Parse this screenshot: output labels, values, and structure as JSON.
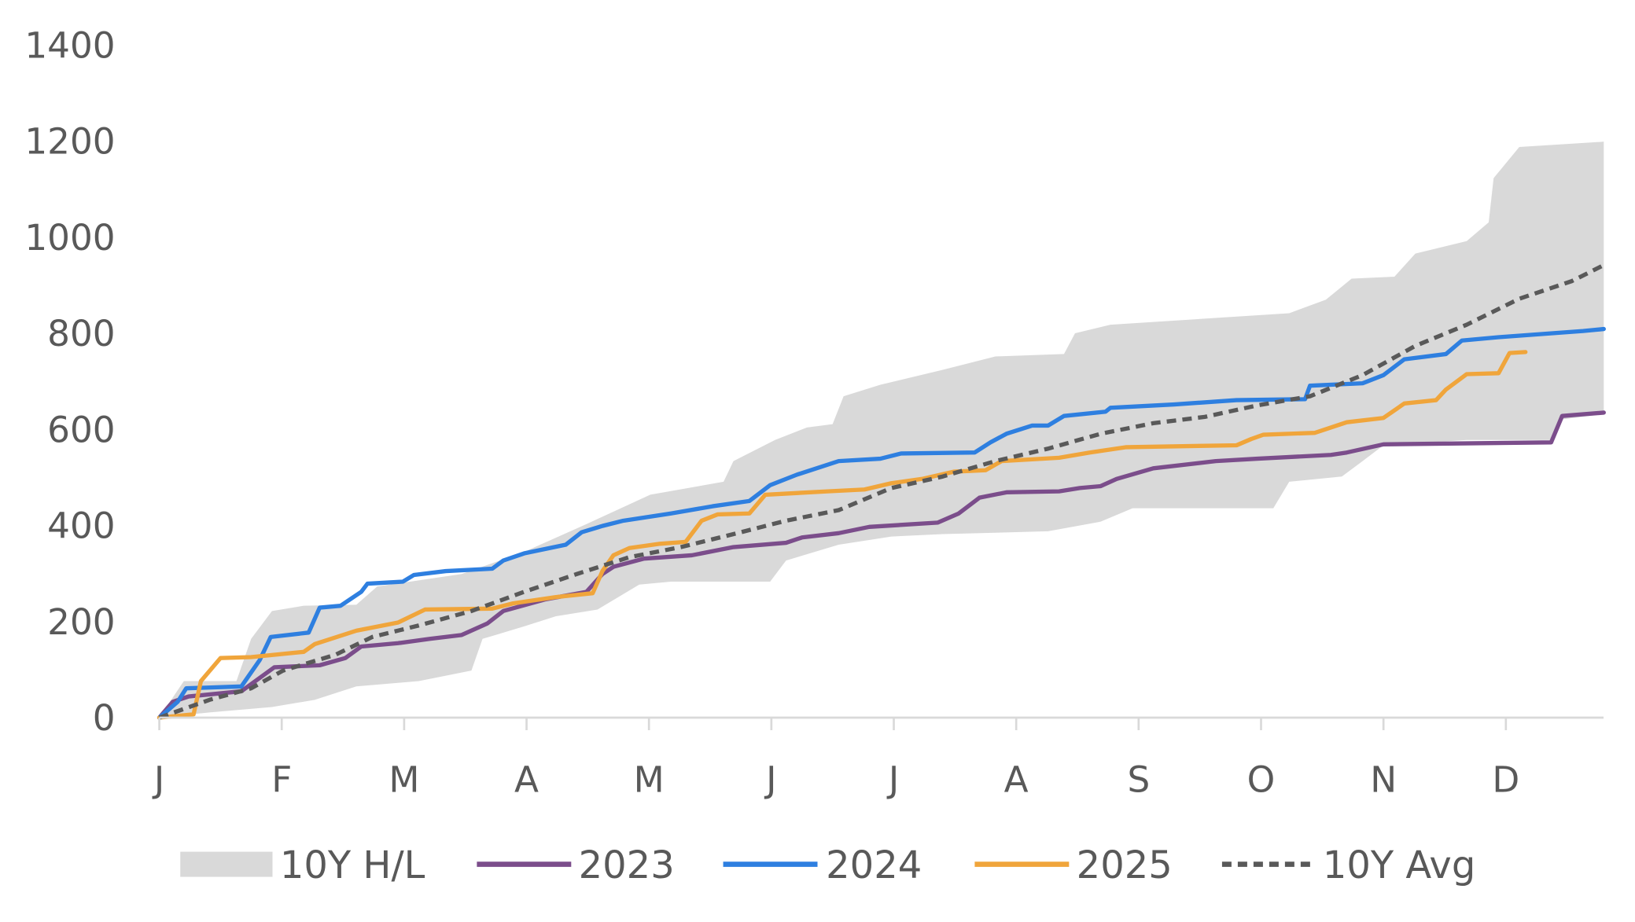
{
  "chart_data": {
    "type": "line",
    "title": "",
    "xlabel": "",
    "ylabel": "",
    "x_unit": "months since Jan 1",
    "xlim": [
      0,
      11.8
    ],
    "ylim": [
      0,
      1400
    ],
    "yticks": [
      0,
      200,
      400,
      600,
      800,
      1000,
      1200,
      1400
    ],
    "xtick_labels": [
      "J",
      "F",
      "M",
      "A",
      "M",
      "J",
      "J",
      "A",
      "S",
      "O",
      "N",
      "D"
    ],
    "grid": false,
    "legend_position": "bottom",
    "colors": {
      "band": "#d9d9d9",
      "2023": "#7b4d8b",
      "2024": "#2e7fe0",
      "2025": "#f0a53b",
      "avg": "#595959"
    },
    "band": {
      "name": "10Y H/L",
      "high": [
        [
          0,
          0
        ],
        [
          0.2,
          76
        ],
        [
          0.63,
          76
        ],
        [
          0.75,
          164
        ],
        [
          0.92,
          222
        ],
        [
          1.18,
          233
        ],
        [
          1.61,
          235
        ],
        [
          1.78,
          273
        ],
        [
          2.47,
          299
        ],
        [
          2.98,
          345
        ],
        [
          3.49,
          403
        ],
        [
          4.01,
          464
        ],
        [
          4.61,
          491
        ],
        [
          4.69,
          534
        ],
        [
          5.03,
          578
        ],
        [
          5.29,
          604
        ],
        [
          5.5,
          611
        ],
        [
          5.59,
          669
        ],
        [
          5.89,
          693
        ],
        [
          6.4,
          724
        ],
        [
          6.83,
          752
        ],
        [
          7.39,
          757
        ],
        [
          7.48,
          800
        ],
        [
          7.77,
          818
        ],
        [
          9.23,
          842
        ],
        [
          9.53,
          870
        ],
        [
          9.74,
          914
        ],
        [
          10.09,
          918
        ],
        [
          10.26,
          966
        ],
        [
          10.68,
          992
        ],
        [
          10.86,
          1031
        ],
        [
          10.9,
          1123
        ],
        [
          11.11,
          1188
        ],
        [
          11.8,
          1199
        ]
      ],
      "low": [
        [
          0,
          0
        ],
        [
          0.41,
          11
        ],
        [
          0.92,
          22
        ],
        [
          1.27,
          37
        ],
        [
          1.61,
          65
        ],
        [
          2.12,
          76
        ],
        [
          2.55,
          98
        ],
        [
          2.64,
          164
        ],
        [
          2.98,
          190
        ],
        [
          3.24,
          211
        ],
        [
          3.58,
          225
        ],
        [
          3.92,
          277
        ],
        [
          4.18,
          283
        ],
        [
          4.99,
          283
        ],
        [
          5.12,
          327
        ],
        [
          5.55,
          360
        ],
        [
          5.98,
          377
        ],
        [
          6.4,
          382
        ],
        [
          7.26,
          388
        ],
        [
          7.69,
          408
        ],
        [
          7.95,
          436
        ],
        [
          9.1,
          436
        ],
        [
          9.23,
          491
        ],
        [
          9.66,
          502
        ],
        [
          9.83,
          534
        ],
        [
          10.0,
          567
        ],
        [
          10.68,
          578
        ],
        [
          11.37,
          578
        ],
        [
          11.46,
          621
        ],
        [
          11.8,
          632
        ]
      ]
    },
    "series": [
      {
        "name": "2023",
        "key": "2023",
        "dashed": false,
        "points": [
          [
            0,
            0
          ],
          [
            0.11,
            33
          ],
          [
            0.24,
            44
          ],
          [
            0.67,
            55
          ],
          [
            0.94,
            105
          ],
          [
            1.31,
            109
          ],
          [
            1.52,
            124
          ],
          [
            1.65,
            148
          ],
          [
            1.95,
            155
          ],
          [
            2.21,
            164
          ],
          [
            2.47,
            172
          ],
          [
            2.68,
            196
          ],
          [
            2.81,
            222
          ],
          [
            3.15,
            246
          ],
          [
            3.49,
            262
          ],
          [
            3.62,
            299
          ],
          [
            3.71,
            314
          ],
          [
            3.96,
            331
          ],
          [
            4.35,
            338
          ],
          [
            4.69,
            355
          ],
          [
            5.12,
            364
          ],
          [
            5.25,
            375
          ],
          [
            5.55,
            384
          ],
          [
            5.8,
            397
          ],
          [
            6.36,
            406
          ],
          [
            6.53,
            425
          ],
          [
            6.7,
            458
          ],
          [
            6.92,
            469
          ],
          [
            7.35,
            471
          ],
          [
            7.52,
            478
          ],
          [
            7.69,
            482
          ],
          [
            7.82,
            497
          ],
          [
            8.12,
            519
          ],
          [
            8.63,
            534
          ],
          [
            8.97,
            539
          ],
          [
            9.57,
            547
          ],
          [
            9.7,
            552
          ],
          [
            10.0,
            569
          ],
          [
            11.37,
            573
          ],
          [
            11.46,
            628
          ],
          [
            11.8,
            635
          ]
        ]
      },
      {
        "name": "2024",
        "key": "2024",
        "dashed": false,
        "points": [
          [
            0,
            0
          ],
          [
            0.15,
            33
          ],
          [
            0.22,
            61
          ],
          [
            0.67,
            65
          ],
          [
            0.82,
            120
          ],
          [
            0.91,
            168
          ],
          [
            1.22,
            177
          ],
          [
            1.31,
            229
          ],
          [
            1.48,
            233
          ],
          [
            1.65,
            262
          ],
          [
            1.7,
            279
          ],
          [
            1.99,
            283
          ],
          [
            2.08,
            297
          ],
          [
            2.34,
            305
          ],
          [
            2.72,
            310
          ],
          [
            2.81,
            327
          ],
          [
            2.98,
            342
          ],
          [
            3.32,
            360
          ],
          [
            3.45,
            386
          ],
          [
            3.62,
            399
          ],
          [
            3.79,
            410
          ],
          [
            4.18,
            425
          ],
          [
            4.52,
            440
          ],
          [
            4.82,
            451
          ],
          [
            4.99,
            484
          ],
          [
            5.21,
            506
          ],
          [
            5.55,
            534
          ],
          [
            5.89,
            539
          ],
          [
            6.06,
            550
          ],
          [
            6.66,
            552
          ],
          [
            6.79,
            573
          ],
          [
            6.92,
            591
          ],
          [
            7.13,
            608
          ],
          [
            7.26,
            608
          ],
          [
            7.39,
            628
          ],
          [
            7.73,
            637
          ],
          [
            7.77,
            645
          ],
          [
            8.29,
            652
          ],
          [
            8.8,
            661
          ],
          [
            9.36,
            663
          ],
          [
            9.4,
            691
          ],
          [
            9.83,
            696
          ],
          [
            10.0,
            713
          ],
          [
            10.17,
            746
          ],
          [
            10.51,
            757
          ],
          [
            10.64,
            785
          ],
          [
            10.94,
            792
          ],
          [
            11.63,
            805
          ],
          [
            11.8,
            809
          ]
        ]
      },
      {
        "name": "2025",
        "key": "2025",
        "dashed": false,
        "points": [
          [
            0,
            0
          ],
          [
            0.28,
            7
          ],
          [
            0.34,
            76
          ],
          [
            0.5,
            124
          ],
          [
            0.75,
            126
          ],
          [
            1.18,
            137
          ],
          [
            1.27,
            153
          ],
          [
            1.61,
            181
          ],
          [
            1.95,
            198
          ],
          [
            2.17,
            225
          ],
          [
            2.72,
            227
          ],
          [
            2.89,
            238
          ],
          [
            3.24,
            251
          ],
          [
            3.54,
            259
          ],
          [
            3.62,
            305
          ],
          [
            3.71,
            338
          ],
          [
            3.84,
            353
          ],
          [
            4.09,
            362
          ],
          [
            4.3,
            366
          ],
          [
            4.43,
            410
          ],
          [
            4.56,
            423
          ],
          [
            4.82,
            425
          ],
          [
            4.95,
            464
          ],
          [
            5.46,
            471
          ],
          [
            5.76,
            475
          ],
          [
            5.98,
            488
          ],
          [
            6.23,
            497
          ],
          [
            6.49,
            512
          ],
          [
            6.75,
            515
          ],
          [
            6.88,
            534
          ],
          [
            7.35,
            541
          ],
          [
            7.6,
            552
          ],
          [
            7.9,
            563
          ],
          [
            8.8,
            567
          ],
          [
            8.92,
            580
          ],
          [
            9.02,
            589
          ],
          [
            9.44,
            593
          ],
          [
            9.7,
            615
          ],
          [
            10.0,
            624
          ],
          [
            10.17,
            654
          ],
          [
            10.43,
            661
          ],
          [
            10.51,
            683
          ],
          [
            10.68,
            715
          ],
          [
            10.94,
            717
          ],
          [
            11.03,
            759
          ],
          [
            11.16,
            761
          ]
        ]
      },
      {
        "name": "10Y Avg",
        "key": "avg",
        "dashed": true,
        "points": [
          [
            0,
            0
          ],
          [
            0.41,
            37
          ],
          [
            0.75,
            61
          ],
          [
            1.01,
            98
          ],
          [
            1.44,
            131
          ],
          [
            1.74,
            168
          ],
          [
            2.12,
            192
          ],
          [
            2.55,
            222
          ],
          [
            2.98,
            262
          ],
          [
            3.41,
            299
          ],
          [
            3.84,
            334
          ],
          [
            4.26,
            355
          ],
          [
            4.69,
            382
          ],
          [
            5.12,
            410
          ],
          [
            5.55,
            432
          ],
          [
            5.98,
            478
          ],
          [
            6.4,
            502
          ],
          [
            6.83,
            534
          ],
          [
            7.26,
            560
          ],
          [
            7.69,
            591
          ],
          [
            8.12,
            613
          ],
          [
            8.54,
            626
          ],
          [
            8.97,
            650
          ],
          [
            9.4,
            669
          ],
          [
            9.83,
            713
          ],
          [
            10.26,
            774
          ],
          [
            10.68,
            818
          ],
          [
            11.11,
            872
          ],
          [
            11.54,
            909
          ],
          [
            11.8,
            942
          ]
        ]
      }
    ],
    "legend": [
      "10Y H/L",
      "2023",
      "2024",
      "2025",
      "10Y Avg"
    ]
  }
}
